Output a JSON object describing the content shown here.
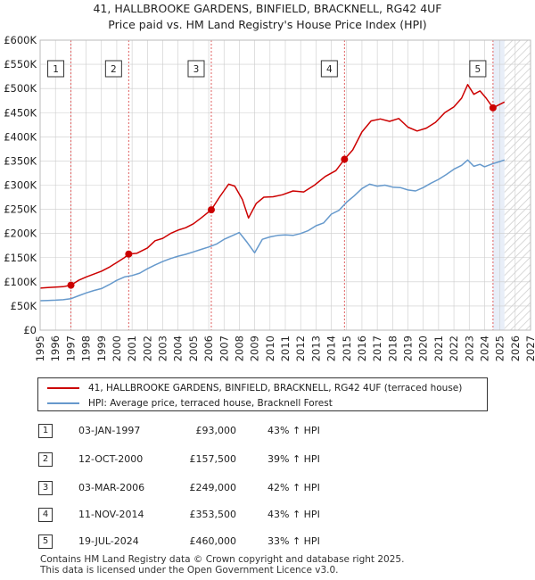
{
  "title_line1": "41, HALLBROOKE GARDENS, BINFIELD, BRACKNELL, RG42 4UF",
  "title_line2": "Price paid vs. HM Land Registry's House Price Index (HPI)",
  "legend": {
    "property_label": "41, HALLBROOKE GARDENS, BINFIELD, BRACKNELL, RG42 4UF (terraced house)",
    "hpi_label": "HPI: Average price, terraced house, Bracknell Forest"
  },
  "transactions": [
    {
      "num": "1",
      "date": "03-JAN-1997",
      "price": "£93,000",
      "hpi": "43% ↑ HPI"
    },
    {
      "num": "2",
      "date": "12-OCT-2000",
      "price": "£157,500",
      "hpi": "39% ↑ HPI"
    },
    {
      "num": "3",
      "date": "03-MAR-2006",
      "price": "£249,000",
      "hpi": "42% ↑ HPI"
    },
    {
      "num": "4",
      "date": "11-NOV-2014",
      "price": "£353,500",
      "hpi": "43% ↑ HPI"
    },
    {
      "num": "5",
      "date": "19-JUL-2024",
      "price": "£460,000",
      "hpi": "33% ↑ HPI"
    }
  ],
  "footer_line1": "Contains HM Land Registry data © Crown copyright and database right 2025.",
  "footer_line2": "This data is licensed under the Open Government Licence v3.0.",
  "colors": {
    "property": "#cc0000",
    "hpi": "#6699cc",
    "marker_line": "#e06060",
    "hatch": "#cccccc",
    "shade": "#e8eef8",
    "grid": "#cccccc"
  },
  "chart_data": {
    "type": "line",
    "xlim": [
      1995,
      2027
    ],
    "ylim": [
      0,
      600000
    ],
    "x_ticks": [
      1995,
      1996,
      1997,
      1998,
      1999,
      2000,
      2001,
      2002,
      2003,
      2004,
      2005,
      2006,
      2007,
      2008,
      2009,
      2010,
      2011,
      2012,
      2013,
      2014,
      2015,
      2016,
      2017,
      2018,
      2019,
      2020,
      2021,
      2022,
      2023,
      2024,
      2025,
      2026,
      2027
    ],
    "y_ticks": [
      0,
      50000,
      100000,
      150000,
      200000,
      250000,
      300000,
      350000,
      400000,
      450000,
      500000,
      550000,
      600000
    ],
    "y_tick_labels": [
      "£0",
      "£50K",
      "£100K",
      "£150K",
      "£200K",
      "£250K",
      "£300K",
      "£350K",
      "£400K",
      "£450K",
      "£500K",
      "£550K",
      "£600K"
    ],
    "forecast_start": 2025.3,
    "series": [
      {
        "name": "41, HALLBROOKE GARDENS, BINFIELD, BRACKNELL, RG42 4UF (terraced house)",
        "x": [
          1995.0,
          1995.5,
          1996.0,
          1996.5,
          1997.01,
          1997.5,
          1998.0,
          1998.5,
          1999.0,
          1999.5,
          2000.0,
          2000.5,
          2000.78,
          2001.3,
          2002.0,
          2002.5,
          2003.0,
          2003.5,
          2004.0,
          2004.5,
          2005.0,
          2005.5,
          2006.17,
          2006.7,
          2007.3,
          2007.7,
          2008.2,
          2008.6,
          2009.1,
          2009.6,
          2010.2,
          2010.8,
          2011.5,
          2012.2,
          2012.9,
          2013.6,
          2014.3,
          2014.86,
          2015.4,
          2016.0,
          2016.6,
          2017.2,
          2017.8,
          2018.4,
          2019.0,
          2019.6,
          2020.2,
          2020.8,
          2021.4,
          2022.0,
          2022.5,
          2022.9,
          2023.3,
          2023.7,
          2024.1,
          2024.55,
          2025.3
        ],
        "y": [
          87000,
          88000,
          89000,
          90000,
          93000,
          103000,
          110000,
          116000,
          122000,
          130000,
          140000,
          150000,
          157500,
          159000,
          170000,
          185000,
          190000,
          200000,
          207000,
          212000,
          220000,
          232000,
          249000,
          275000,
          302000,
          298000,
          270000,
          232000,
          262000,
          275000,
          276000,
          280000,
          288000,
          286000,
          300000,
          318000,
          330000,
          353500,
          373000,
          410000,
          433000,
          437000,
          432000,
          438000,
          420000,
          412000,
          418000,
          430000,
          450000,
          462000,
          480000,
          508000,
          488000,
          495000,
          480000,
          460000,
          472000
        ]
      },
      {
        "name": "HPI: Average price, terraced house, Bracknell Forest",
        "x": [
          1995.0,
          1995.5,
          1996.0,
          1996.5,
          1997.0,
          1997.5,
          1998.0,
          1998.5,
          1999.0,
          1999.5,
          2000.0,
          2000.5,
          2001.0,
          2001.5,
          2002.0,
          2002.5,
          2003.0,
          2003.5,
          2004.0,
          2004.5,
          2005.0,
          2005.5,
          2006.0,
          2006.5,
          2007.0,
          2007.5,
          2008.0,
          2008.5,
          2009.0,
          2009.5,
          2010.0,
          2010.5,
          2011.0,
          2011.5,
          2012.0,
          2012.5,
          2013.0,
          2013.5,
          2014.0,
          2014.5,
          2015.0,
          2015.5,
          2016.0,
          2016.5,
          2017.0,
          2017.5,
          2018.0,
          2018.5,
          2019.0,
          2019.5,
          2020.0,
          2020.5,
          2021.0,
          2021.5,
          2022.0,
          2022.5,
          2022.9,
          2023.3,
          2023.7,
          2024.0,
          2024.5,
          2025.0,
          2025.3
        ],
        "y": [
          61000,
          61500,
          62000,
          63000,
          65000,
          71000,
          77000,
          82000,
          86000,
          94000,
          103000,
          110000,
          113000,
          118000,
          127000,
          135000,
          142000,
          148000,
          153000,
          157000,
          162000,
          167000,
          172000,
          178000,
          188000,
          195000,
          202000,
          182000,
          160000,
          188000,
          193000,
          196000,
          197000,
          196000,
          200000,
          206000,
          216000,
          222000,
          240000,
          248000,
          265000,
          278000,
          293000,
          302000,
          298000,
          300000,
          296000,
          295000,
          290000,
          288000,
          295000,
          304000,
          312000,
          322000,
          333000,
          341000,
          352000,
          339000,
          343000,
          338000,
          344000,
          349000,
          352000
        ]
      }
    ],
    "sale_markers": [
      {
        "label": "1",
        "x": 1997.01,
        "y": 93000
      },
      {
        "label": "2",
        "x": 2000.78,
        "y": 157500
      },
      {
        "label": "3",
        "x": 2006.17,
        "y": 249000
      },
      {
        "label": "4",
        "x": 2014.86,
        "y": 353500
      },
      {
        "label": "5",
        "x": 2024.55,
        "y": 460000
      }
    ]
  }
}
